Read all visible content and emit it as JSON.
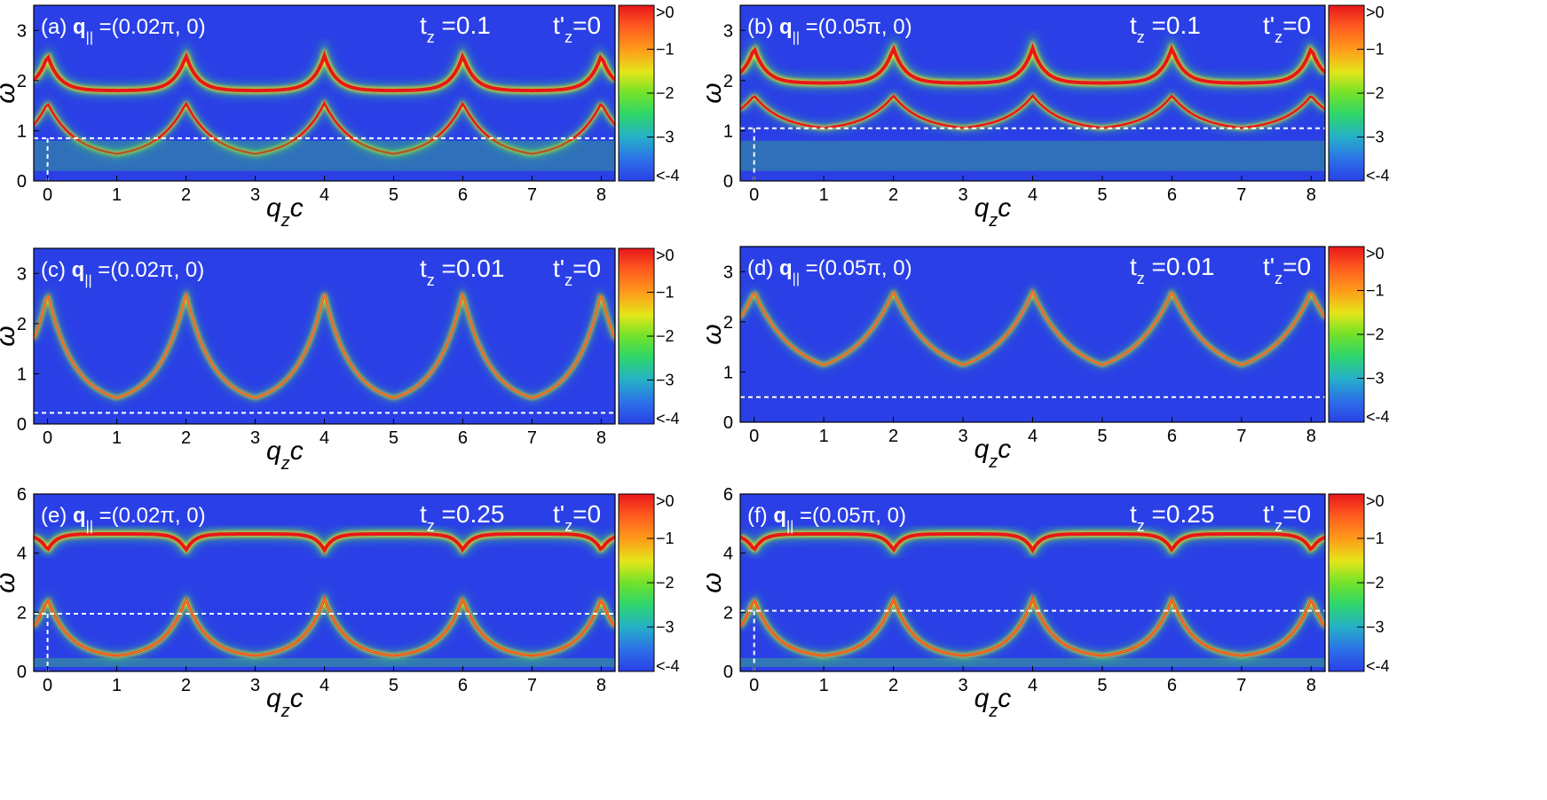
{
  "chart_data": [
    {
      "type": "heatmap",
      "panel_label": "(a)",
      "q_label": "q",
      "q_sub": "||",
      "q_value": " =(0.02π, 0)",
      "tz_text": "t",
      "tz_sub": "z",
      "tz_value": " =0.1",
      "tzp_text": "t'",
      "tzp_sub": "z",
      "tzp_value": "=0",
      "xlabel": "q",
      "xlabel_sub": "z",
      "xlabel_tail": "c",
      "ylabel": "ω",
      "xlim": [
        -0.2,
        8.2
      ],
      "ylim": [
        0,
        3.5
      ],
      "xticks": [
        0,
        1,
        2,
        3,
        4,
        5,
        6,
        7,
        8
      ],
      "yticks": [
        0,
        1,
        2,
        3
      ],
      "dashed_line_omega": 0.85,
      "vertical_dash_omega_max": 0.85,
      "colorbar": {
        "labels": [
          ">0",
          "−1",
          "−2",
          "−3",
          "<-4"
        ],
        "range": [
          -4,
          0
        ]
      }
    },
    {
      "type": "heatmap",
      "panel_label": "(b)",
      "q_label": "q",
      "q_sub": "||",
      "q_value": " =(0.05π, 0)",
      "tz_text": "t",
      "tz_sub": "z",
      "tz_value": " =0.1",
      "tzp_text": "t'",
      "tzp_sub": "z",
      "tzp_value": "=0",
      "xlabel": "q",
      "xlabel_sub": "z",
      "xlabel_tail": "c",
      "ylabel": "ω",
      "xlim": [
        -0.2,
        8.2
      ],
      "ylim": [
        0,
        3.5
      ],
      "xticks": [
        0,
        1,
        2,
        3,
        4,
        5,
        6,
        7,
        8
      ],
      "yticks": [
        0,
        1,
        2,
        3
      ],
      "dashed_line_omega": 1.05,
      "vertical_dash_omega_max": 1.05,
      "colorbar": {
        "labels": [
          ">0",
          "−1",
          "−2",
          "−3",
          "<-4"
        ],
        "range": [
          -4,
          0
        ]
      }
    },
    {
      "type": "heatmap",
      "panel_label": "(c)",
      "q_label": "q",
      "q_sub": "||",
      "q_value": " =(0.02π, 0)",
      "tz_text": "t",
      "tz_sub": "z",
      "tz_value": " =0.01",
      "tzp_text": "t'",
      "tzp_sub": "z",
      "tzp_value": "=0",
      "xlabel": "q",
      "xlabel_sub": "z",
      "xlabel_tail": "c",
      "ylabel": "ω",
      "xlim": [
        -0.2,
        8.2
      ],
      "ylim": [
        0,
        3.5
      ],
      "xticks": [
        0,
        1,
        2,
        3,
        4,
        5,
        6,
        7,
        8
      ],
      "yticks": [
        0,
        1,
        2,
        3
      ],
      "dashed_line_omega": 0.22,
      "vertical_dash_omega_max": null,
      "colorbar": {
        "labels": [
          ">0",
          "−1",
          "−2",
          "−3",
          "<-4"
        ],
        "range": [
          -4,
          0
        ]
      }
    },
    {
      "type": "heatmap",
      "panel_label": "(d)",
      "q_label": "q",
      "q_sub": "||",
      "q_value": " =(0.05π, 0)",
      "tz_text": "t",
      "tz_sub": "z",
      "tz_value": " =0.01",
      "tzp_text": "t'",
      "tzp_sub": "z",
      "tzp_value": "=0",
      "xlabel": "q",
      "xlabel_sub": "z",
      "xlabel_tail": "c",
      "ylabel": "ω",
      "xlim": [
        -0.2,
        8.2
      ],
      "ylim": [
        0,
        3.5
      ],
      "xticks": [
        0,
        1,
        2,
        3,
        4,
        5,
        6,
        7,
        8
      ],
      "yticks": [
        0,
        1,
        2,
        3
      ],
      "dashed_line_omega": 0.5,
      "vertical_dash_omega_max": null,
      "colorbar": {
        "labels": [
          ">0",
          "−1",
          "−2",
          "−3",
          "<-4"
        ],
        "range": [
          -4,
          0
        ]
      }
    },
    {
      "type": "heatmap",
      "panel_label": "(e)",
      "q_label": "q",
      "q_sub": "||",
      "q_value": " =(0.02π, 0)",
      "tz_text": "t",
      "tz_sub": "z",
      "tz_value": " =0.25",
      "tzp_text": "t'",
      "tzp_sub": "z",
      "tzp_value": "=0",
      "xlabel": "q",
      "xlabel_sub": "z",
      "xlabel_tail": "c",
      "ylabel": "ω",
      "xlim": [
        -0.2,
        8.2
      ],
      "ylim": [
        0,
        6
      ],
      "xticks": [
        0,
        1,
        2,
        3,
        4,
        5,
        6,
        7,
        8
      ],
      "yticks": [
        0,
        2,
        4,
        6
      ],
      "dashed_line_omega": 1.95,
      "vertical_dash_omega_max": 1.95,
      "colorbar": {
        "labels": [
          ">0",
          "−1",
          "−2",
          "−3",
          "<-4"
        ],
        "range": [
          -4,
          0
        ]
      }
    },
    {
      "type": "heatmap",
      "panel_label": "(f)",
      "q_label": "q",
      "q_sub": "||",
      "q_value": " =(0.05π, 0)",
      "tz_text": "t",
      "tz_sub": "z",
      "tz_value": " =0.25",
      "tzp_text": "t'",
      "tzp_sub": "z",
      "tzp_value": "=0",
      "xlabel": "q",
      "xlabel_sub": "z",
      "xlabel_tail": "c",
      "ylabel": "ω",
      "xlim": [
        -0.2,
        8.2
      ],
      "ylim": [
        0,
        6
      ],
      "xticks": [
        0,
        1,
        2,
        3,
        4,
        5,
        6,
        7,
        8
      ],
      "yticks": [
        0,
        2,
        4,
        6
      ],
      "dashed_line_omega": 2.05,
      "vertical_dash_omega_max": 2.05,
      "colorbar": {
        "labels": [
          ">0",
          "−1",
          "−2",
          "−3",
          "<-4"
        ],
        "range": [
          -4,
          0
        ]
      }
    }
  ]
}
